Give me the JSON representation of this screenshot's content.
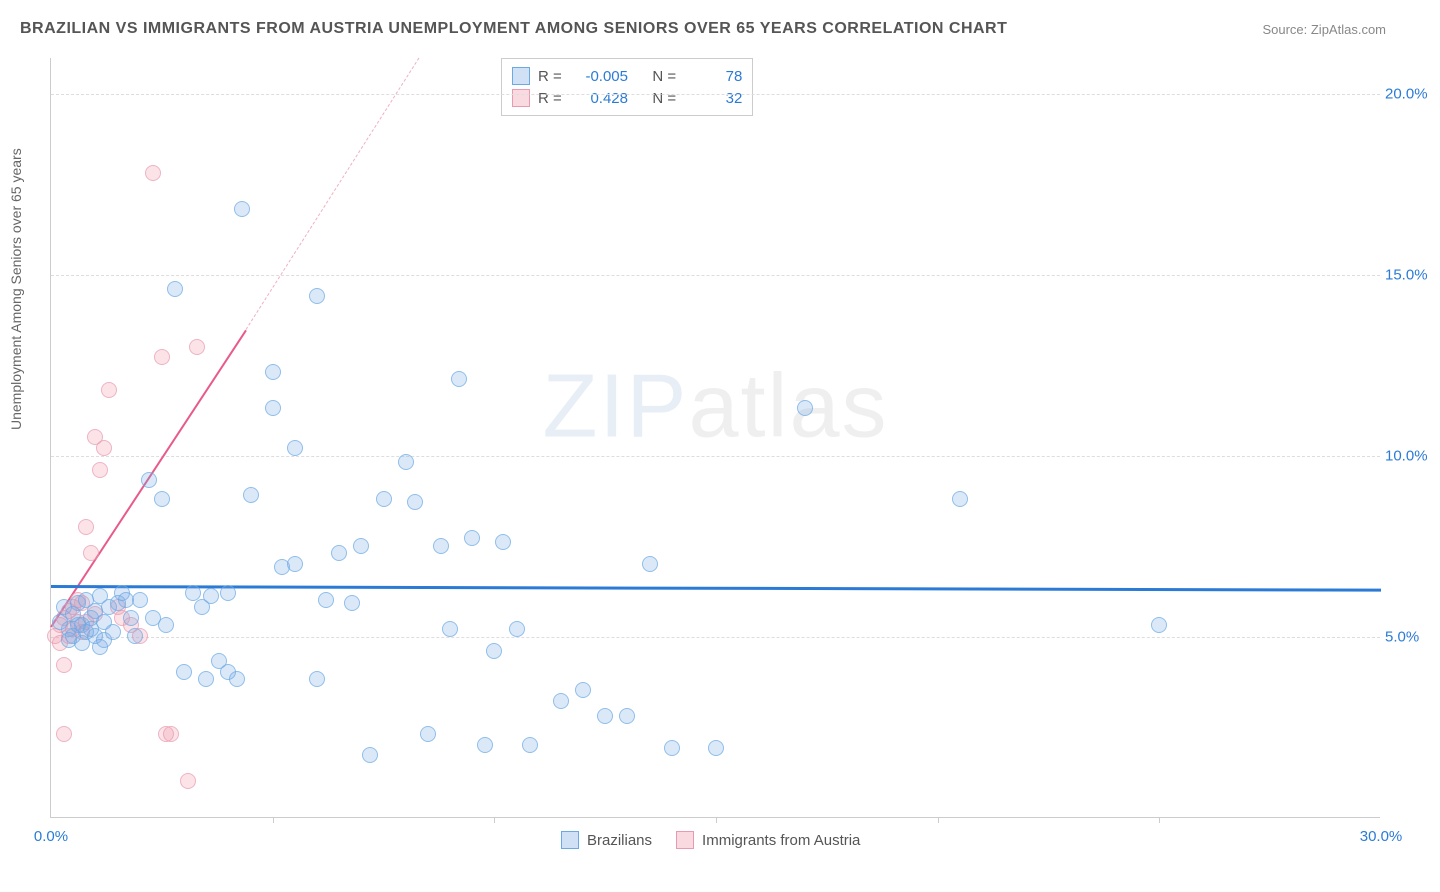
{
  "title": "BRAZILIAN VS IMMIGRANTS FROM AUSTRIA UNEMPLOYMENT AMONG SENIORS OVER 65 YEARS CORRELATION CHART",
  "source": "Source: ZipAtlas.com",
  "ylabel": "Unemployment Among Seniors over 65 years",
  "watermark_bold": "ZIP",
  "watermark_thin": "atlas",
  "chart": {
    "type": "scatter",
    "xlim": [
      0,
      30
    ],
    "ylim": [
      0,
      21
    ],
    "x_ticks": [
      {
        "v": 0,
        "label": "0.0%",
        "color": "#2b7bd6"
      },
      {
        "v": 30,
        "label": "30.0%",
        "color": "#2b7bd6"
      }
    ],
    "x_minor_ticks": [
      5,
      10,
      15,
      20,
      25
    ],
    "y_ticks": [
      {
        "v": 5,
        "label": "5.0%",
        "color": "#2b7bd6"
      },
      {
        "v": 10,
        "label": "10.0%",
        "color": "#2b7bd6"
      },
      {
        "v": 15,
        "label": "15.0%",
        "color": "#2b7bd6"
      },
      {
        "v": 20,
        "label": "20.0%",
        "color": "#2b7bd6"
      }
    ],
    "background_color": "#ffffff",
    "grid_color": "#dddddd",
    "series": [
      {
        "name": "Brazilians",
        "fill": "rgba(120,170,230,0.35)",
        "stroke": "#6aa9e4",
        "r": -0.005,
        "n": 78,
        "trend": {
          "x1": 0,
          "y1": 6.45,
          "x2": 30,
          "y2": 6.35,
          "color": "#2b7bd6",
          "width": 2.5
        },
        "points": [
          [
            0.2,
            5.4
          ],
          [
            0.3,
            5.8
          ],
          [
            0.4,
            5.2
          ],
          [
            0.5,
            5.6
          ],
          [
            0.6,
            5.9
          ],
          [
            0.7,
            5.3
          ],
          [
            0.8,
            6.0
          ],
          [
            0.9,
            5.5
          ],
          [
            1.0,
            5.7
          ],
          [
            1.1,
            6.1
          ],
          [
            1.2,
            5.4
          ],
          [
            1.3,
            5.8
          ],
          [
            1.5,
            5.9
          ],
          [
            1.6,
            6.2
          ],
          [
            1.8,
            5.5
          ],
          [
            2.0,
            6.0
          ],
          [
            2.2,
            9.3
          ],
          [
            2.5,
            8.8
          ],
          [
            2.8,
            14.6
          ],
          [
            3.0,
            4.0
          ],
          [
            3.2,
            6.2
          ],
          [
            3.4,
            5.8
          ],
          [
            3.5,
            3.8
          ],
          [
            3.6,
            6.1
          ],
          [
            3.8,
            4.3
          ],
          [
            4.0,
            4.0
          ],
          [
            4.0,
            6.2
          ],
          [
            4.2,
            3.8
          ],
          [
            4.3,
            16.8
          ],
          [
            4.5,
            8.9
          ],
          [
            5.0,
            11.3
          ],
          [
            5.0,
            12.3
          ],
          [
            5.2,
            6.9
          ],
          [
            5.5,
            10.2
          ],
          [
            5.5,
            7.0
          ],
          [
            6.0,
            14.4
          ],
          [
            6.0,
            3.8
          ],
          [
            6.2,
            6.0
          ],
          [
            6.5,
            7.3
          ],
          [
            6.8,
            5.9
          ],
          [
            7.0,
            7.5
          ],
          [
            7.2,
            1.7
          ],
          [
            7.5,
            8.8
          ],
          [
            8.0,
            9.8
          ],
          [
            8.2,
            8.7
          ],
          [
            8.5,
            2.3
          ],
          [
            8.8,
            7.5
          ],
          [
            9.0,
            5.2
          ],
          [
            9.2,
            12.1
          ],
          [
            9.5,
            7.7
          ],
          [
            9.8,
            2.0
          ],
          [
            10.0,
            4.6
          ],
          [
            10.2,
            7.6
          ],
          [
            10.5,
            5.2
          ],
          [
            10.8,
            2.0
          ],
          [
            11.5,
            3.2
          ],
          [
            12.0,
            3.5
          ],
          [
            12.5,
            2.8
          ],
          [
            13.0,
            2.8
          ],
          [
            13.5,
            7.0
          ],
          [
            14.0,
            1.9
          ],
          [
            15.0,
            1.9
          ],
          [
            17.0,
            11.3
          ],
          [
            20.5,
            8.8
          ],
          [
            25.0,
            5.3
          ],
          [
            1.0,
            5.0
          ],
          [
            1.2,
            4.9
          ],
          [
            1.4,
            5.1
          ],
          [
            0.5,
            5.0
          ],
          [
            0.8,
            5.1
          ],
          [
            0.7,
            4.8
          ],
          [
            0.9,
            5.2
          ],
          [
            1.7,
            6.0
          ],
          [
            2.3,
            5.5
          ],
          [
            2.6,
            5.3
          ],
          [
            1.9,
            5.0
          ],
          [
            1.1,
            4.7
          ],
          [
            0.4,
            4.9
          ],
          [
            0.6,
            5.3
          ]
        ]
      },
      {
        "name": "Immigrants from Austria",
        "fill": "rgba(240,150,170,0.35)",
        "stroke": "#e89ab0",
        "r": 0.428,
        "n": 32,
        "trend": {
          "x1": 0,
          "y1": 5.3,
          "x2": 4.4,
          "y2": 13.5,
          "color": "#e85a8a",
          "width": 2
        },
        "trend_dash": {
          "x1": 4.4,
          "y1": 13.5,
          "x2": 8.3,
          "y2": 21.0,
          "color": "#f0b0c0"
        },
        "points": [
          [
            0.1,
            5.0
          ],
          [
            0.2,
            5.3
          ],
          [
            0.2,
            4.8
          ],
          [
            0.3,
            5.5
          ],
          [
            0.3,
            4.2
          ],
          [
            0.4,
            5.7
          ],
          [
            0.4,
            5.0
          ],
          [
            0.5,
            5.8
          ],
          [
            0.5,
            5.2
          ],
          [
            0.6,
            6.0
          ],
          [
            0.6,
            5.4
          ],
          [
            0.7,
            5.9
          ],
          [
            0.7,
            5.1
          ],
          [
            0.8,
            8.0
          ],
          [
            0.9,
            7.3
          ],
          [
            1.0,
            10.5
          ],
          [
            1.0,
            5.6
          ],
          [
            1.1,
            9.6
          ],
          [
            1.2,
            10.2
          ],
          [
            1.3,
            11.8
          ],
          [
            1.5,
            5.8
          ],
          [
            1.6,
            5.5
          ],
          [
            1.8,
            5.3
          ],
          [
            2.0,
            5.0
          ],
          [
            2.3,
            17.8
          ],
          [
            2.5,
            12.7
          ],
          [
            2.6,
            2.3
          ],
          [
            2.7,
            2.3
          ],
          [
            3.1,
            1.0
          ],
          [
            3.3,
            13.0
          ],
          [
            0.3,
            2.3
          ],
          [
            0.8,
            5.4
          ]
        ]
      }
    ]
  },
  "legend_top": {
    "r_label": "R =",
    "n_label": "N ="
  },
  "legend_bottom": [
    {
      "label": "Brazilians",
      "fill": "rgba(120,170,230,0.35)",
      "stroke": "#6aa9e4"
    },
    {
      "label": "Immigrants from Austria",
      "fill": "rgba(240,150,170,0.35)",
      "stroke": "#e89ab0"
    }
  ]
}
